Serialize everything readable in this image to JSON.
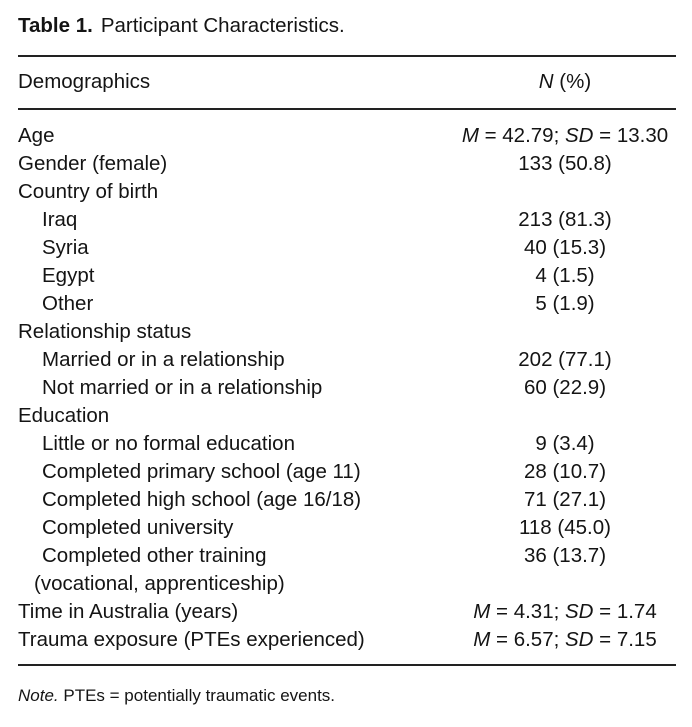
{
  "caption": {
    "label": "Table 1.",
    "title": "Participant Characteristics."
  },
  "header": {
    "left": "Demographics",
    "right": "N (%)"
  },
  "rows": [
    {
      "label": "Age",
      "value": "M = 42.79; SD = 13.30"
    },
    {
      "label": "Gender (female)",
      "value": "133 (50.8)"
    },
    {
      "label": "Country of birth",
      "value": ""
    },
    {
      "label": "Iraq",
      "value": "213 (81.3)"
    },
    {
      "label": "Syria",
      "value": "40 (15.3)"
    },
    {
      "label": "Egypt",
      "value": "4 (1.5)"
    },
    {
      "label": "Other",
      "value": "5 (1.9)"
    },
    {
      "label": "Relationship status",
      "value": ""
    },
    {
      "label": "Married or in a relationship",
      "value": "202 (77.1)"
    },
    {
      "label": "Not married or in a relationship",
      "value": "60 (22.9)"
    },
    {
      "label": "Education",
      "value": ""
    },
    {
      "label": "Little or no formal education",
      "value": "9 (3.4)"
    },
    {
      "label": "Completed primary school (age 11)",
      "value": "28 (10.7)"
    },
    {
      "label": "Completed high school (age 16/18)",
      "value": "71 (27.1)"
    },
    {
      "label": "Completed university",
      "value": "118 (45.0)"
    },
    {
      "label": "Completed other training",
      "value": "36 (13.7)"
    },
    {
      "label": "(vocational, apprenticeship)",
      "value": ""
    },
    {
      "label": "Time in Australia (years)",
      "value": "M = 4.31; SD = 1.74"
    },
    {
      "label": "Trauma exposure (PTEs experienced)",
      "value": "M = 6.57; SD = 7.15"
    }
  ],
  "note": {
    "label": "Note.",
    "text": "PTEs = potentially traumatic events."
  }
}
